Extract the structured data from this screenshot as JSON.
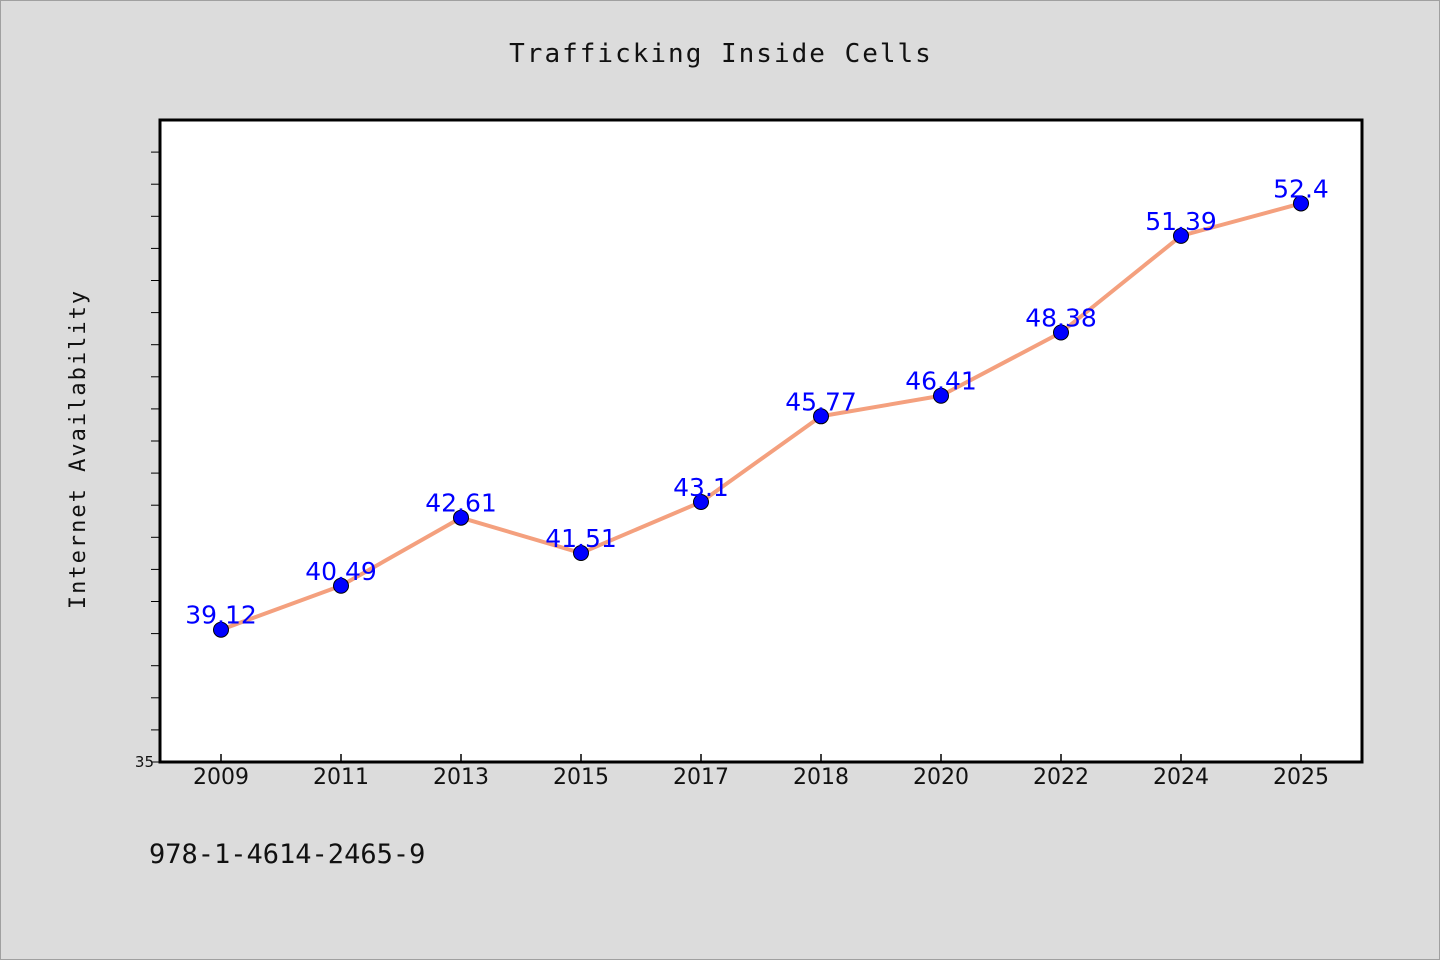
{
  "chart_data": {
    "type": "line",
    "title": "Trafficking Inside Cells",
    "xlabel": "",
    "ylabel": "Internet Availability",
    "categories": [
      "2009",
      "2011",
      "2013",
      "2015",
      "2017",
      "2018",
      "2020",
      "2022",
      "2024",
      "2025"
    ],
    "series": [
      {
        "values": [
          39.12,
          40.49,
          42.61,
          41.51,
          43.1,
          45.77,
          46.41,
          48.38,
          51.39,
          52.4
        ],
        "data_labels": [
          "39.12",
          "40.49",
          "42.61",
          "41.51",
          "43.1",
          "45.77",
          "46.41",
          "48.38",
          "51.39",
          "52.4"
        ],
        "line_color": "#f4a07e",
        "marker_color": "#0000ff"
      }
    ],
    "ylim": [
      35,
      55
    ],
    "y_tick_labels": [
      "35"
    ],
    "grid": false,
    "legend": "none",
    "label_color": "#0000ff",
    "plot_background": "#ffffff",
    "figure_background": "#dcdcdc"
  },
  "footer": {
    "text": "978-1-4614-2465-9"
  }
}
